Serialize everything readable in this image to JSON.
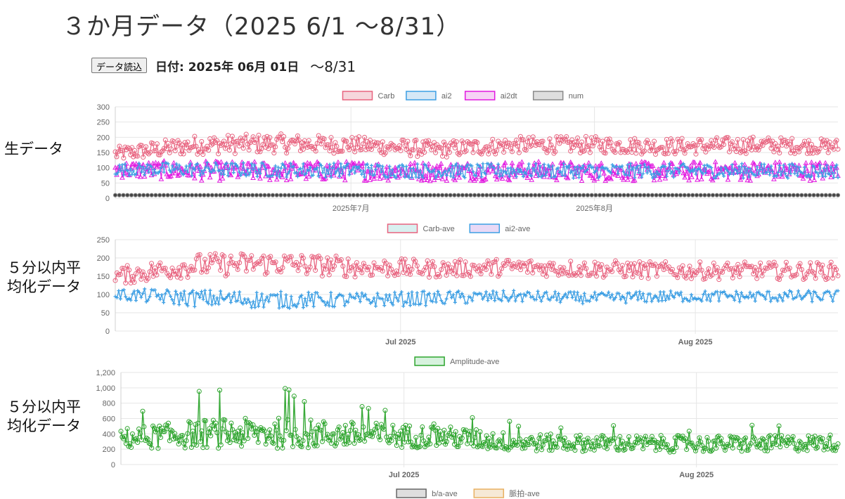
{
  "page_title": "３か月データ（2025 6/1 ～8/31）",
  "toolbar": {
    "load_button": "データ読込",
    "date_label": "日付: 2025年 06月 01日",
    "range_text": "～8/31"
  },
  "row_labels": {
    "raw": "生データ",
    "avg1_line1": "５分以内平",
    "avg1_line2": "均化データ",
    "avg2_line1": "５分以内平",
    "avg2_line2": "均化データ"
  },
  "chart_data": [
    {
      "type": "line",
      "legend": [
        {
          "name": "Carb",
          "color": "#e8637f",
          "fill": "#f6d6dc"
        },
        {
          "name": "ai2",
          "color": "#3d9fe4",
          "fill": "#d6e8f6"
        },
        {
          "name": "ai2dt",
          "color": "#e21ae0",
          "fill": "#f6d3f5"
        },
        {
          "name": "num",
          "color": "#8a8a8a",
          "fill": "#dedede"
        }
      ],
      "y_ticks": [
        "0",
        "50",
        "100",
        "150",
        "200",
        "250",
        "300"
      ],
      "ylim": [
        0,
        300
      ],
      "x_ticks": [
        {
          "label": "2025年7月",
          "day": 30
        },
        {
          "label": "2025年8月",
          "day": 61
        }
      ],
      "xlim_days": [
        0,
        92
      ],
      "grid": true,
      "legend_position": "top",
      "series": [
        {
          "name": "Carb",
          "level": [
            145,
            175,
            180,
            175,
            160,
            175,
            175,
            170,
            175,
            170
          ],
          "spread": [
            30,
            40,
            40,
            35,
            35,
            35,
            35,
            35,
            35,
            30
          ]
        },
        {
          "name": "ai2dt",
          "level": [
            95,
            90,
            88,
            90,
            88,
            90,
            88,
            88,
            90,
            90
          ],
          "spread": [
            35,
            40,
            40,
            40,
            40,
            40,
            40,
            40,
            40,
            40
          ]
        },
        {
          "name": "ai2",
          "level": [
            95,
            95,
            93,
            92,
            90,
            90,
            90,
            90,
            90,
            90
          ],
          "spread": [
            25,
            30,
            30,
            30,
            30,
            30,
            30,
            30,
            30,
            30
          ]
        },
        {
          "name": "num",
          "level": [
            10,
            10,
            10,
            10,
            10,
            10,
            10,
            10,
            10,
            10
          ],
          "spread": [
            0,
            0,
            0,
            0,
            0,
            0,
            0,
            0,
            0,
            0
          ]
        }
      ]
    },
    {
      "type": "line",
      "legend": [
        {
          "name": "Carb-ave",
          "color": "#e8637f",
          "fill": "#d9f0f0"
        },
        {
          "name": "ai2-ave",
          "color": "#3d9fe4",
          "fill": "#e9d9f6"
        }
      ],
      "y_ticks": [
        "0",
        "50",
        "100",
        "150",
        "200",
        "250"
      ],
      "ylim": [
        0,
        250
      ],
      "x_ticks": [
        {
          "label": "Jul 2025",
          "day": 30
        },
        {
          "label": "Aug 2025",
          "day": 61
        }
      ],
      "xlim_days": [
        0,
        76
      ],
      "grid": true,
      "legend_position": "top",
      "series": [
        {
          "name": "Carb-ave",
          "level": [
            150,
            180,
            185,
            175,
            170,
            175,
            170,
            165,
            165,
            165
          ],
          "spread": [
            30,
            40,
            40,
            35,
            30,
            30,
            30,
            30,
            30,
            30
          ]
        },
        {
          "name": "ai2-ave",
          "level": [
            100,
            90,
            85,
            85,
            90,
            95,
            90,
            95,
            95,
            95
          ],
          "spread": [
            20,
            30,
            30,
            25,
            25,
            20,
            20,
            20,
            20,
            20
          ]
        }
      ]
    },
    {
      "type": "line",
      "legend": [
        {
          "name": "Amplitude-ave",
          "color": "#2ea52e",
          "fill": "#d7f2de"
        }
      ],
      "bottom_legend": [
        {
          "name": "b/a-ave",
          "color": "#666666",
          "fill": "#dedede"
        },
        {
          "name": "脈拍-ave",
          "color": "#e8b060",
          "fill": "#f6e9d6"
        }
      ],
      "y_ticks": [
        "0",
        "200",
        "400",
        "600",
        "800",
        "1,000",
        "1,200"
      ],
      "ylim": [
        0,
        1200
      ],
      "x_ticks": [
        {
          "label": "Jul 2025",
          "day": 30
        },
        {
          "label": "Aug 2025",
          "day": 61
        }
      ],
      "xlim_days": [
        0,
        76
      ],
      "grid": true,
      "legend_position": "top",
      "series": [
        {
          "name": "Amplitude-ave",
          "level": [
            350,
            420,
            430,
            400,
            380,
            300,
            290,
            280,
            280,
            300
          ],
          "spread": [
            300,
            420,
            450,
            380,
            320,
            260,
            240,
            240,
            240,
            240
          ]
        }
      ]
    }
  ]
}
